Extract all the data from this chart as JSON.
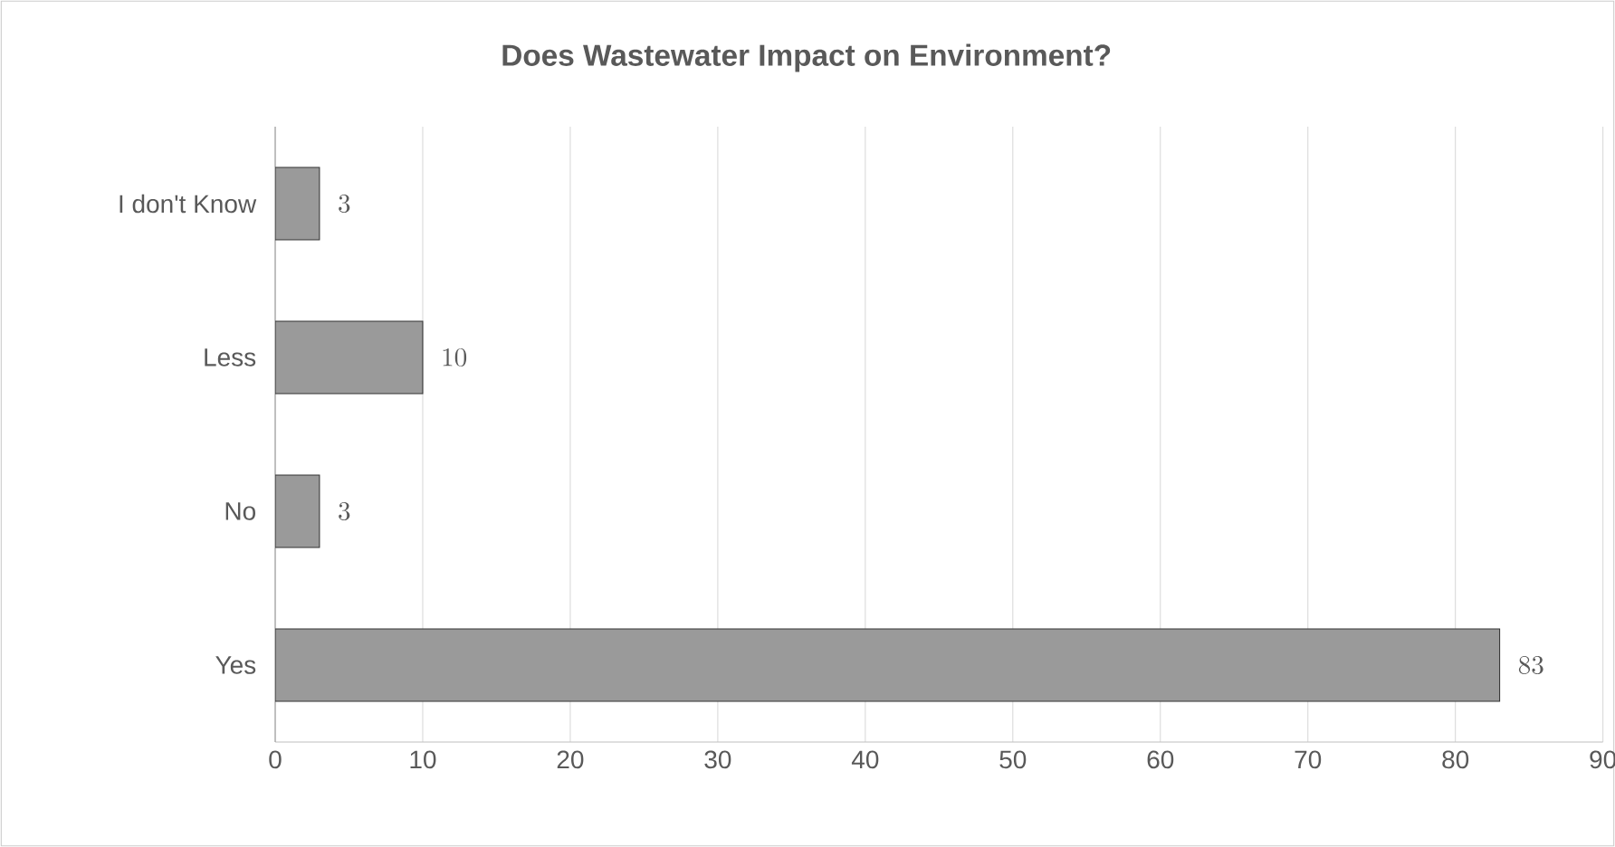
{
  "chart_data": {
    "type": "bar",
    "orientation": "horizontal",
    "title": "Does Wastewater Impact on Environment?",
    "categories": [
      "I don't Know",
      "Less",
      "No",
      "Yes"
    ],
    "values": [
      3,
      10,
      3,
      83
    ],
    "color": "#9a9a9a",
    "xlim": [
      0,
      90
    ],
    "xticks": [
      0,
      10,
      20,
      30,
      40,
      50,
      60,
      70,
      80,
      90
    ],
    "grid": "x",
    "data_labels": true
  }
}
